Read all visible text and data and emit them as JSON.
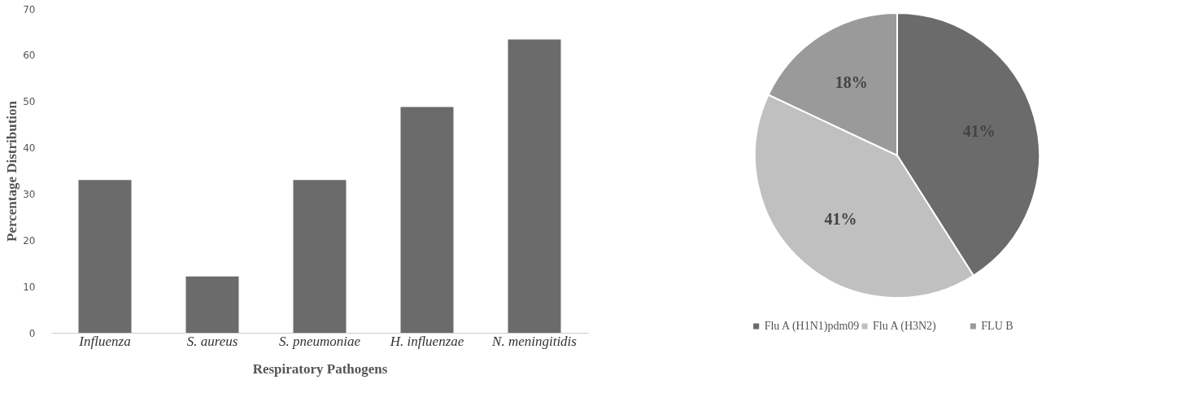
{
  "chart_data": [
    {
      "type": "bar",
      "xlabel": "Respiratory Pathogens",
      "ylabel": "Percentage Distribution",
      "categories": [
        "Influenza",
        "S. aureus",
        "S. pneumoniae",
        "H. influenzae",
        "N. meningitidis"
      ],
      "values": [
        33,
        12.2,
        33,
        48.8,
        63.4
      ],
      "color": "#6b6b6b",
      "ylim": [
        0,
        70
      ],
      "yticks": [
        0,
        10,
        20,
        30,
        40,
        50,
        60,
        70
      ],
      "grid": false
    },
    {
      "type": "pie",
      "categories": [
        "Flu A (H1N1)pdm09",
        "Flu A (H3N2)",
        "FLU B"
      ],
      "values": [
        41,
        41,
        18
      ],
      "colors": [
        "#6b6b6b",
        "#c0c0c0",
        "#9a9a9a"
      ],
      "value_labels": [
        "41%",
        "41%",
        "18%"
      ],
      "legend": "bottom"
    }
  ]
}
